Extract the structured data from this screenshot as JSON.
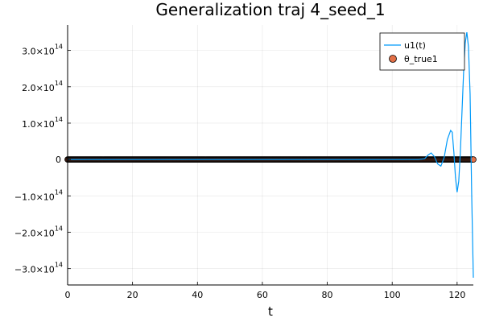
{
  "chart_data": {
    "type": "line",
    "title": "Generalization traj 4_seed_1",
    "xlabel": "t",
    "ylabel": "",
    "xlim": [
      0,
      125
    ],
    "ylim": [
      -345000000000000.0,
      370000000000000.0
    ],
    "x_ticks": [
      {
        "value": 0,
        "label": "0"
      },
      {
        "value": 20,
        "label": "20"
      },
      {
        "value": 40,
        "label": "40"
      },
      {
        "value": 60,
        "label": "60"
      },
      {
        "value": 80,
        "label": "80"
      },
      {
        "value": 100,
        "label": "100"
      },
      {
        "value": 120,
        "label": "120"
      }
    ],
    "y_ticks": [
      {
        "value": 300000000000000.0,
        "mantissa": "3.0×10",
        "exp": "14"
      },
      {
        "value": 200000000000000.0,
        "mantissa": "2.0×10",
        "exp": "14"
      },
      {
        "value": 100000000000000.0,
        "mantissa": "1.0×10",
        "exp": "14"
      },
      {
        "value": 0,
        "mantissa": "0",
        "exp": ""
      },
      {
        "value": -100000000000000.0,
        "mantissa": "−1.0×10",
        "exp": "14"
      },
      {
        "value": -200000000000000.0,
        "mantissa": "−2.0×10",
        "exp": "14"
      },
      {
        "value": -300000000000000.0,
        "mantissa": "−3.0×10",
        "exp": "14"
      }
    ],
    "grid": true,
    "legend_position": "top-right",
    "series": [
      {
        "name": "u1(t)",
        "kind": "line",
        "color": "#009AFA",
        "x": [
          0,
          20,
          40,
          60,
          80,
          100,
          108,
          110,
          111,
          112,
          113,
          114,
          115,
          116,
          117,
          118,
          118.5,
          119,
          119.5,
          120,
          120.5,
          121,
          121.5,
          122,
          122.5,
          123,
          123.5,
          124,
          124.5,
          125
        ],
        "y": [
          0,
          0,
          0,
          0,
          0,
          0,
          0,
          2000000000000.0,
          12000000000000.0,
          18000000000000.0,
          8000000000000.0,
          -12000000000000.0,
          -18000000000000.0,
          5000000000000.0,
          55000000000000.0,
          80000000000000.0,
          75000000000000.0,
          20000000000000.0,
          -50000000000000.0,
          -90000000000000.0,
          -60000000000000.0,
          20000000000000.0,
          130000000000000.0,
          240000000000000.0,
          320000000000000.0,
          350000000000000.0,
          310000000000000.0,
          180000000000000.0,
          -100000000000000.0,
          -325000000000000.0
        ]
      },
      {
        "name": "θ_true1",
        "kind": "scatter",
        "color": "#E26F46",
        "stroke": "#000000",
        "x_start": 0,
        "x_end": 125,
        "x_step": 0.25,
        "y_value": 0
      }
    ]
  }
}
